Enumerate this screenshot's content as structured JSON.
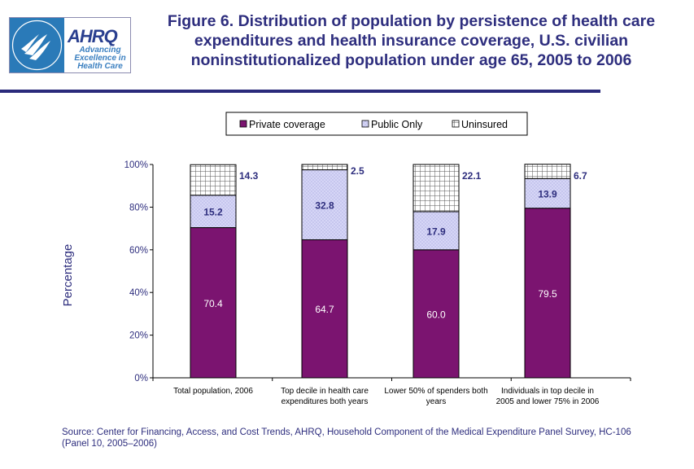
{
  "header": {
    "logo": {
      "ahrq_word": "AHRQ",
      "tagline": "Advancing Excellence in Health Care",
      "seal_text": "DEPARTMENT OF HEALTH & HUMAN SERVICES · USA"
    },
    "title": "Figure 6. Distribution of population by persistence of health care expenditures and health insurance coverage, U.S. civilian noninstitutionalized population under age 65, 2005 to 2006"
  },
  "colors": {
    "title": "#2e2e7e",
    "rule": "#2b2b7b",
    "private": "#7b1470",
    "public": "#d6d6f6",
    "uninsured_grid": "#555555"
  },
  "chart_data": {
    "type": "bar",
    "stacked": true,
    "ylabel": "Percentage",
    "xlabel": "",
    "ylim": [
      0,
      100
    ],
    "yticks": [
      "0%",
      "20%",
      "40%",
      "60%",
      "80%",
      "100%"
    ],
    "legend_position": "top",
    "categories": [
      "Total population, 2006",
      "Top decile in health care expenditures both years",
      "Lower 50% of spenders both years",
      "Individuals in top decile in 2005 and lower 75% in 2006"
    ],
    "series": [
      {
        "name": "Private coverage",
        "values": [
          70.4,
          64.7,
          60.0,
          79.5
        ],
        "labels": [
          "70.4",
          "64.7",
          "60.0",
          "79.5"
        ]
      },
      {
        "name": "Public Only",
        "values": [
          15.2,
          32.8,
          17.9,
          13.9
        ],
        "labels": [
          "15.2",
          "32.8",
          "17.9",
          "13.9"
        ]
      },
      {
        "name": "Uninsured",
        "values": [
          14.3,
          2.5,
          22.1,
          6.7
        ],
        "labels": [
          "14.3",
          "2.5",
          "22.1",
          "6.7"
        ]
      }
    ]
  },
  "source": "Source: Center for Financing, Access, and Cost Trends, AHRQ, Household Component of the Medical Expenditure Panel Survey, HC-106 (Panel 10, 2005–2006)"
}
